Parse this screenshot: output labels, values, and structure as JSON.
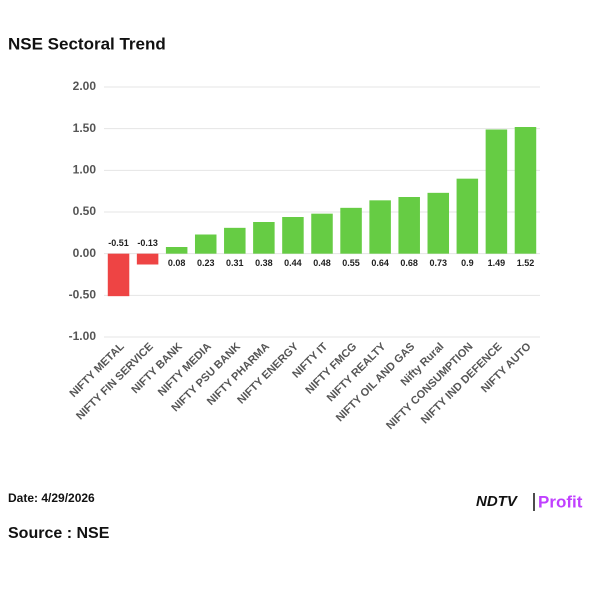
{
  "chart_data": {
    "type": "bar",
    "title": "NSE Sectoral Trend",
    "categories": [
      "NIFTY METAL",
      "NIFTY FIN SERVICE",
      "NIFTY BANK",
      "NIFTY MEDIA",
      "NIFTY PSU BANK",
      "NIFTY PHARMA",
      "NIFTY ENERGY",
      "NIFTY IT",
      "NIFTY FMCG",
      "NIFTY REALTY",
      "NIFTY OIL AND GAS",
      "Nifty Rural",
      "NIFTY CONSUMPTION",
      "NIFTY IND DEFENCE",
      "NIFTY AUTO"
    ],
    "values": [
      -0.51,
      -0.13,
      0.08,
      0.23,
      0.31,
      0.38,
      0.44,
      0.48,
      0.55,
      0.64,
      0.68,
      0.73,
      0.9,
      1.49,
      1.52
    ],
    "positive_color": "#66cc44",
    "negative_color": "#ee4444",
    "ylim": [
      -1,
      2
    ],
    "yticks": [
      {
        "value": -1,
        "label": "-1.00"
      },
      {
        "value": -0.5,
        "label": "-0.50"
      },
      {
        "value": 0,
        "label": "0.00"
      },
      {
        "value": 0.5,
        "label": "0.50"
      },
      {
        "value": 1,
        "label": "1.00"
      },
      {
        "value": 1.5,
        "label": "1.50"
      },
      {
        "value": 2,
        "label": "2.00"
      }
    ],
    "grid": true
  },
  "footer": {
    "date": "Date: 4/29/2026",
    "source": "Source : NSE",
    "logo_main": "NDTV",
    "logo_sub": "Profit"
  }
}
